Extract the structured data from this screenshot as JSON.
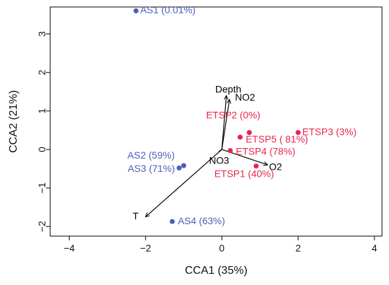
{
  "chart_data": {
    "type": "scatter",
    "title": "",
    "xlabel": "CCA1 (35%)",
    "ylabel": "CCA2 (21%)",
    "xlim": [
      -4.5,
      4.2
    ],
    "ylim": [
      -2.25,
      3.7
    ],
    "xticks": [
      -4,
      -2,
      0,
      2,
      4
    ],
    "yticks": [
      -2,
      -1,
      0,
      1,
      2,
      3
    ],
    "grid": false,
    "colors": {
      "AS": "#4a5fb8",
      "ETSP": "#e8244e",
      "vector": "#000000"
    },
    "series": [
      {
        "name": "AS",
        "points": [
          {
            "label": "AS1 (0.01%)",
            "x": -2.25,
            "y": 3.6
          },
          {
            "label": "AS2 (59%)",
            "x": -1.0,
            "y": -0.42
          },
          {
            "label": "AS3 (71%)",
            "x": -1.12,
            "y": -0.48
          },
          {
            "label": "AS4 (63%)",
            "x": -1.3,
            "y": -1.87
          }
        ]
      },
      {
        "name": "ETSP",
        "points": [
          {
            "label": "ETSP1 (40%)",
            "x": 0.9,
            "y": -0.43
          },
          {
            "label": "ETSP2 (0%)",
            "x": 0.72,
            "y": 0.44
          },
          {
            "label": "ETSP3 (3%)",
            "x": 2.0,
            "y": 0.44
          },
          {
            "label": "ETSP4 (78%)",
            "x": 0.22,
            "y": -0.03
          },
          {
            "label": "ETSP5 ( 81%)",
            "x": 0.48,
            "y": 0.32
          }
        ]
      }
    ],
    "vectors": [
      {
        "label": "Depth",
        "x": 0.12,
        "y": 1.4
      },
      {
        "label": "NO2",
        "x": 0.2,
        "y": 1.3
      },
      {
        "label": "O2",
        "x": 1.2,
        "y": -0.4
      },
      {
        "label": "NO3",
        "x": -0.08,
        "y": -0.05
      },
      {
        "label": "T",
        "x": -2.0,
        "y": -1.75
      }
    ]
  }
}
